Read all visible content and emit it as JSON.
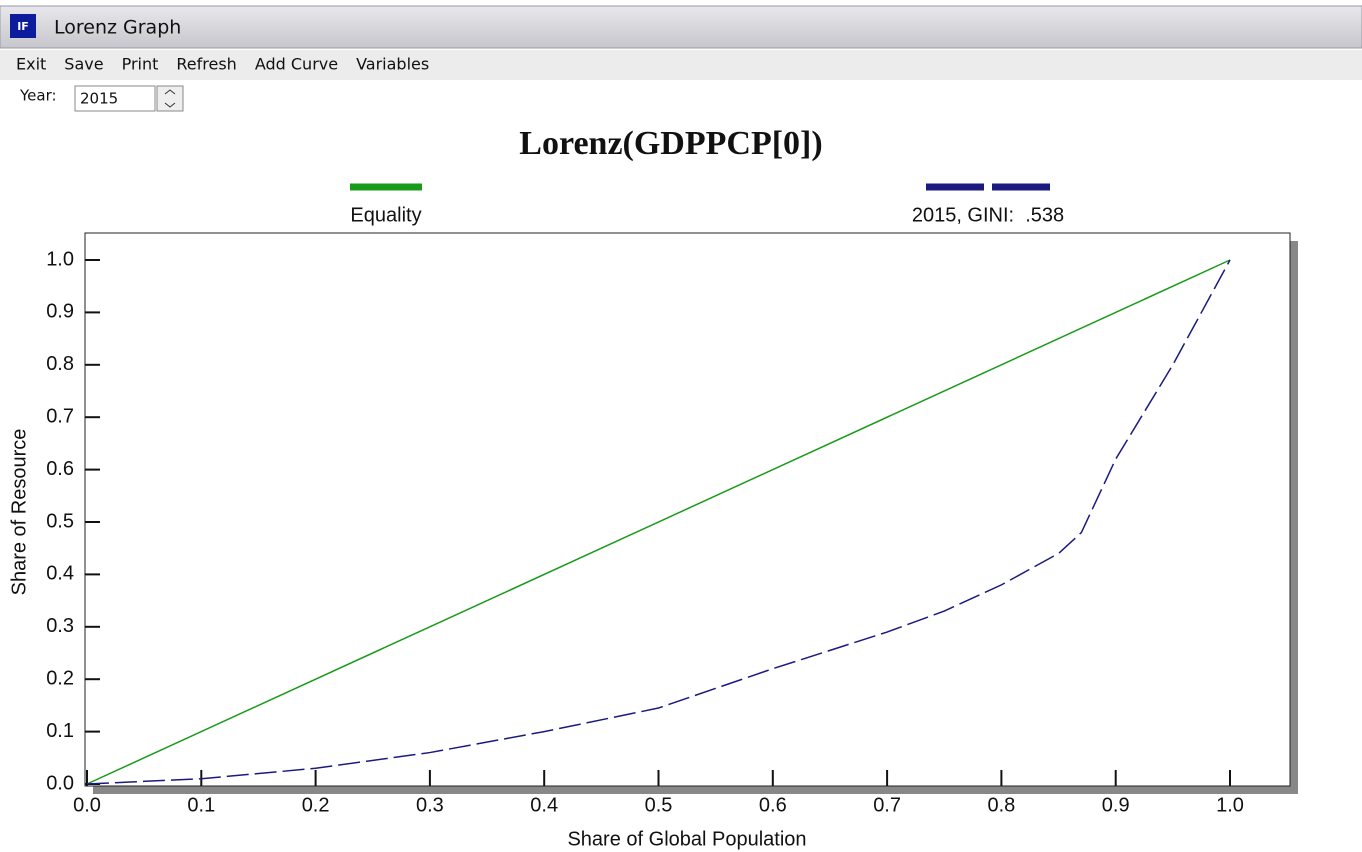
{
  "window": {
    "title": "Lorenz Graph",
    "icon": "IF",
    "menu": [
      "Exit",
      "Save",
      "Print",
      "Refresh",
      "Add Curve",
      "Variables"
    ],
    "year_label": "Year:",
    "year_value": "2015"
  },
  "chart_data": {
    "type": "line",
    "title": "Lorenz(GDPPCP[0])",
    "x_label": "Share of Global Population",
    "y_label": "Share of Resource",
    "xlim": [
      0,
      1.05
    ],
    "ylim": [
      0,
      1.05
    ],
    "xticks": [
      {
        "value": 0,
        "label": "0.0"
      },
      0.1,
      0.2,
      0.3,
      0.4,
      0.5,
      0.6,
      0.7,
      0.8,
      0.9,
      {
        "value": 1,
        "label": "1.0"
      }
    ],
    "yticks": [
      {
        "value": 0,
        "label": "0.0"
      },
      0.1,
      0.2,
      0.3,
      0.4,
      0.5,
      0.6,
      0.7,
      0.8,
      0.9,
      {
        "value": 1,
        "label": "1.0"
      }
    ],
    "series": [
      {
        "name": "Equality",
        "color": "#1a9a1a",
        "dashed": false,
        "x": [
          0,
          1
        ],
        "values": [
          0,
          1
        ]
      },
      {
        "name": "2015, GINI:  .538",
        "color": "#1a1a80",
        "dashed": true,
        "x": [
          0,
          0.1,
          0.2,
          0.3,
          0.4,
          0.5,
          0.6,
          0.7,
          0.75,
          0.8,
          0.85,
          0.87,
          0.9,
          0.95,
          1
        ],
        "values": [
          0,
          0.01,
          0.03,
          0.06,
          0.1,
          0.145,
          0.22,
          0.29,
          0.33,
          0.38,
          0.44,
          0.48,
          0.62,
          0.8,
          1
        ]
      }
    ]
  }
}
